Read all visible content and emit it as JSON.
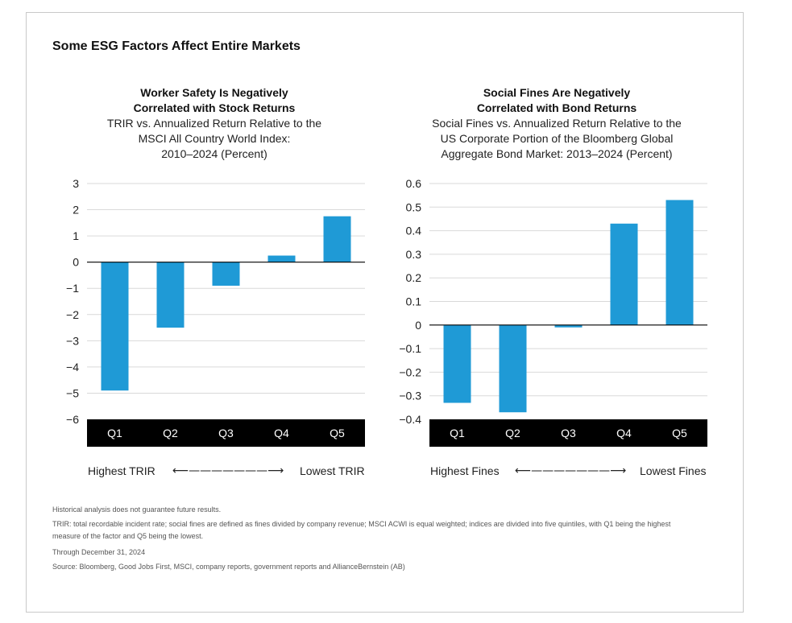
{
  "main_title": "Some ESG Factors Affect Entire Markets",
  "charts_text": [
    {
      "title_line1": "Worker Safety Is Negatively",
      "title_line2": "Correlated with Stock Returns",
      "sub_line1": "TRIR vs. Annualized Return Relative to the",
      "sub_line2": "MSCI All Country World Index:",
      "sub_line3": "2010–2024 (Percent)",
      "left_label": "Highest TRIR",
      "arrow": "⟵———————⟶",
      "right_label": "Lowest TRIR"
    },
    {
      "title_line1": "Social Fines Are Negatively",
      "title_line2": "Correlated with Bond Returns",
      "sub_line1": "Social Fines vs. Annualized Return Relative to the",
      "sub_line2": "US Corporate Portion of the Bloomberg Global",
      "sub_line3": "Aggregate Bond Market: 2013–2024 (Percent)",
      "left_label": "Highest Fines",
      "arrow": "⟵———————⟶",
      "right_label": "Lowest Fines"
    }
  ],
  "chart_data": [
    {
      "type": "bar",
      "title": "Worker Safety Is Negatively Correlated with Stock Returns",
      "subtitle": "TRIR vs. Annualized Return Relative to the MSCI All Country World Index: 2010–2024 (Percent)",
      "categories": [
        "Q1",
        "Q2",
        "Q3",
        "Q4",
        "Q5"
      ],
      "values": [
        -4.9,
        -2.5,
        -0.9,
        0.25,
        1.75
      ],
      "ylim": [
        -6,
        3
      ],
      "yticks": [
        3,
        2,
        1,
        0,
        -1,
        -2,
        -3,
        -4,
        -5,
        -6
      ],
      "ytick_labels": [
        "3",
        "2",
        "1",
        "0",
        "−1",
        "−2",
        "−3",
        "−4",
        "−5",
        "−6"
      ],
      "grid": true,
      "bar_color": "#1f9ad6"
    },
    {
      "type": "bar",
      "title": "Social Fines Are Negatively Correlated with Bond Returns",
      "subtitle": "Social Fines vs. Annualized Return Relative to the US Corporate Portion of the Bloomberg Global Aggregate Bond Market: 2013–2024 (Percent)",
      "categories": [
        "Q1",
        "Q2",
        "Q3",
        "Q4",
        "Q5"
      ],
      "values": [
        -0.33,
        -0.37,
        -0.01,
        0.43,
        0.53
      ],
      "ylim": [
        -0.4,
        0.6
      ],
      "yticks": [
        0.6,
        0.5,
        0.4,
        0.3,
        0.2,
        0.1,
        0,
        -0.1,
        -0.2,
        -0.3,
        -0.4
      ],
      "ytick_labels": [
        "0.6",
        "0.5",
        "0.4",
        "0.3",
        "0.2",
        "0.1",
        "0",
        "−0.1",
        "−0.2",
        "−0.3",
        "−0.4"
      ],
      "grid": true,
      "bar_color": "#1f9ad6"
    }
  ],
  "footnotes": {
    "line1": "Historical analysis does not guarantee future results.",
    "line2": "TRIR: total recordable incident rate; social fines are defined as fines divided by company revenue; MSCI ACWI is equal weighted; indices are divided into five quintiles, with Q1 being the highest",
    "line3": "measure of the factor and Q5 being the lowest.",
    "line4": "Through December 31, 2024",
    "line5": "Source: Bloomberg, Good Jobs First, MSCI, company reports, government reports and AllianceBernstein (AB)"
  },
  "colors": {
    "bar": "#1f9ad6",
    "category_band": "#000000",
    "grid": "#d9d9d9",
    "zero_line": "#000000"
  }
}
